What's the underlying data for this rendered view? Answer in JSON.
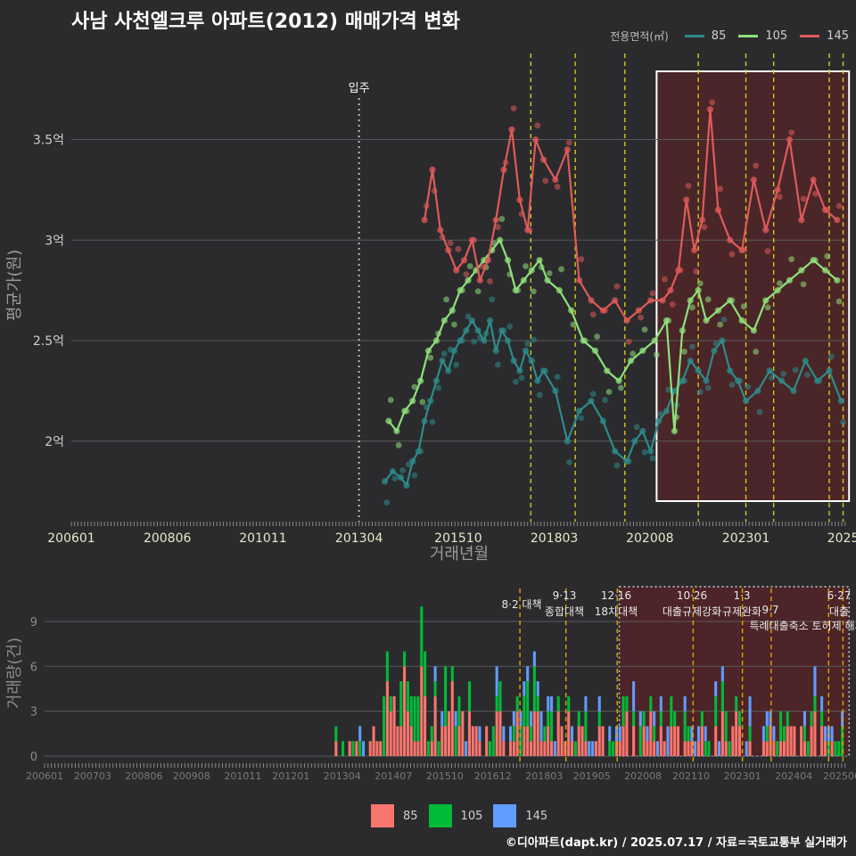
{
  "title": "사남 사천엘크루 아파트(2012) 매매가격 변화",
  "footer": "©디아파트(dapt.kr) / 2025.07.17 / 자료=국토교통부 실거래가",
  "legend_top": {
    "title": "전용면적(㎡)",
    "items": [
      {
        "label": "85",
        "color": "#2e8b8b"
      },
      {
        "label": "105",
        "color": "#8fe07a"
      },
      {
        "label": "145",
        "color": "#e05a5a"
      }
    ]
  },
  "legend_bottom": {
    "items": [
      {
        "label": "85",
        "color": "#f8766d"
      },
      {
        "label": "105",
        "color": "#00ba38"
      },
      {
        "label": "145",
        "color": "#619cff"
      }
    ]
  },
  "chart_data": [
    {
      "type": "line",
      "xlabel": "거래년월",
      "ylabel": "평균가(원)",
      "x_ticks": [
        "200601",
        "200806",
        "201011",
        "201304",
        "201510",
        "201803",
        "202008",
        "202301",
        "2025"
      ],
      "y_ticks": [
        "2억",
        "2.5억",
        "3억",
        "3.5억"
      ],
      "ylim": [
        1.6,
        3.95
      ],
      "annotations": [
        {
          "label": "입주",
          "x": 2013.25
        }
      ],
      "highlight_region": {
        "x": [
          2020.75,
          2025.6
        ]
      },
      "policy_lines": [
        2017.58,
        2018.7,
        2019.95,
        2021.8,
        2023.0,
        2023.7,
        2025.1,
        2025.45
      ],
      "series": [
        {
          "name": "85",
          "x": [
            2013.9,
            2014.1,
            2014.3,
            2014.45,
            2014.6,
            2014.75,
            2014.9,
            2015.05,
            2015.2,
            2015.35,
            2015.5,
            2015.65,
            2015.8,
            2015.95,
            2016.1,
            2016.25,
            2016.4,
            2016.55,
            2016.7,
            2016.85,
            2017.0,
            2017.15,
            2017.3,
            2017.45,
            2017.6,
            2017.75,
            2017.9,
            2018.2,
            2018.5,
            2018.8,
            2019.1,
            2019.4,
            2019.7,
            2020.0,
            2020.2,
            2020.4,
            2020.6,
            2020.8,
            2021.0,
            2021.2,
            2021.4,
            2021.6,
            2021.8,
            2022.0,
            2022.2,
            2022.4,
            2022.6,
            2022.8,
            2023.0,
            2023.3,
            2023.6,
            2023.9,
            2024.2,
            2024.5,
            2024.8,
            2025.1,
            2025.4
          ],
          "values": [
            1.8,
            1.85,
            1.82,
            1.78,
            1.9,
            1.95,
            2.1,
            2.2,
            2.3,
            2.4,
            2.35,
            2.45,
            2.5,
            2.55,
            2.6,
            2.55,
            2.5,
            2.6,
            2.45,
            2.55,
            2.5,
            2.4,
            2.35,
            2.45,
            2.4,
            2.3,
            2.35,
            2.25,
            2.0,
            2.15,
            2.2,
            2.1,
            1.95,
            1.9,
            2.0,
            2.05,
            1.95,
            2.1,
            2.15,
            2.25,
            2.3,
            2.4,
            2.35,
            2.3,
            2.45,
            2.5,
            2.35,
            2.3,
            2.2,
            2.25,
            2.35,
            2.3,
            2.25,
            2.4,
            2.3,
            2.35,
            2.2
          ]
        },
        {
          "name": "105",
          "x": [
            2014.0,
            2014.2,
            2014.4,
            2014.6,
            2014.8,
            2015.0,
            2015.2,
            2015.4,
            2015.6,
            2015.8,
            2016.0,
            2016.2,
            2016.4,
            2016.6,
            2016.8,
            2017.0,
            2017.2,
            2017.4,
            2017.6,
            2017.8,
            2018.0,
            2018.3,
            2018.6,
            2018.9,
            2019.2,
            2019.5,
            2019.8,
            2020.1,
            2020.4,
            2020.7,
            2021.0,
            2021.2,
            2021.4,
            2021.6,
            2021.8,
            2022.0,
            2022.3,
            2022.6,
            2022.9,
            2023.2,
            2023.5,
            2023.8,
            2024.1,
            2024.4,
            2024.7,
            2025.0,
            2025.3
          ],
          "values": [
            2.1,
            2.05,
            2.15,
            2.2,
            2.3,
            2.45,
            2.5,
            2.6,
            2.65,
            2.75,
            2.8,
            2.85,
            2.9,
            2.95,
            3.0,
            2.9,
            2.75,
            2.8,
            2.85,
            2.9,
            2.8,
            2.75,
            2.65,
            2.5,
            2.45,
            2.35,
            2.3,
            2.4,
            2.45,
            2.5,
            2.6,
            2.05,
            2.55,
            2.7,
            2.75,
            2.6,
            2.65,
            2.7,
            2.6,
            2.55,
            2.7,
            2.75,
            2.8,
            2.85,
            2.9,
            2.85,
            2.8
          ]
        },
        {
          "name": "145",
          "x": [
            2014.9,
            2015.1,
            2015.3,
            2015.5,
            2015.7,
            2015.9,
            2016.1,
            2016.3,
            2016.5,
            2016.7,
            2016.9,
            2017.1,
            2017.3,
            2017.5,
            2017.7,
            2017.9,
            2018.2,
            2018.5,
            2018.8,
            2019.1,
            2019.4,
            2019.7,
            2020.0,
            2020.3,
            2020.6,
            2020.9,
            2021.1,
            2021.3,
            2021.5,
            2021.7,
            2021.9,
            2022.1,
            2022.3,
            2022.6,
            2022.9,
            2023.2,
            2023.5,
            2023.8,
            2024.1,
            2024.4,
            2024.7,
            2025.0,
            2025.3
          ],
          "values": [
            3.1,
            3.35,
            3.05,
            2.95,
            2.85,
            2.9,
            3.0,
            2.8,
            2.9,
            3.1,
            3.35,
            3.55,
            3.2,
            3.05,
            3.5,
            3.4,
            3.3,
            3.45,
            2.8,
            2.7,
            2.65,
            2.7,
            2.6,
            2.65,
            2.7,
            2.7,
            2.75,
            2.85,
            3.2,
            2.95,
            3.1,
            3.65,
            3.15,
            3.0,
            2.95,
            3.3,
            3.05,
            3.25,
            3.5,
            3.1,
            3.3,
            3.15,
            3.1
          ]
        }
      ]
    },
    {
      "type": "bar",
      "xlabel": "",
      "ylabel": "거래량(건)",
      "x_ticks": [
        "200601",
        "200703",
        "200806",
        "200908",
        "201011",
        "201201",
        "201304",
        "201407",
        "201510",
        "201612",
        "201803",
        "201905",
        "202008",
        "202110",
        "202301",
        "202404",
        "202506"
      ],
      "y_ticks": [
        "0",
        "3",
        "6",
        "9"
      ],
      "ylim": [
        0,
        11.5
      ],
      "stacked": true,
      "policy_labels": [
        {
          "line1": "8·2 대책",
          "line2": "",
          "x": 2017.58
        },
        {
          "line1": "9·13",
          "line2": "종합대책",
          "x": 2018.7
        },
        {
          "line1": "12·16",
          "line2": "18차대책",
          "x": 2019.95
        },
        {
          "line1": "10·26",
          "line2": "대출규제강화",
          "x": 2021.8
        },
        {
          "line1": "1·3",
          "line2": "규제완화",
          "x": 2023.0
        },
        {
          "line1": "9·7",
          "line2": "",
          "x": 2023.7
        },
        {
          "line1": "",
          "line2": "특례대출축소 토허제 해제",
          "x": 2024.3
        },
        {
          "line1": "6·27",
          "line2": "대출",
          "x": 2025.45
        }
      ],
      "highlight_region": {
        "x": [
          2020.0,
          2025.6
        ]
      },
      "policy_lines": [
        2017.58,
        2018.7,
        2019.95,
        2021.8,
        2023.0,
        2023.7,
        2025.1,
        2025.45
      ],
      "series": [
        {
          "name": "85"
        },
        {
          "name": "105"
        },
        {
          "name": "145"
        }
      ]
    }
  ]
}
